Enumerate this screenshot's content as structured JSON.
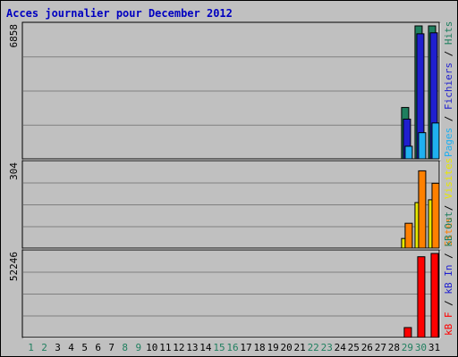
{
  "title": "Acces journalier pour December 2012",
  "colors": {
    "background": "#c0c0c0",
    "title": "#0000c0",
    "hits": "#1f7f5f",
    "files": "#1f1fcf",
    "pages": "#1fb0f0",
    "visits": "#e8e800",
    "sites": "#ff8000",
    "kb_out": "#1f7f5f",
    "kb_in": "#1f1fcf",
    "kb_f": "#ff0000",
    "weekend": "#1f7f5f",
    "weekday": "#000000"
  },
  "chart_data": {
    "type": "bar",
    "title": "Acces journalier pour December 2012",
    "days": [
      "1",
      "2",
      "3",
      "4",
      "5",
      "6",
      "7",
      "8",
      "9",
      "10",
      "11",
      "12",
      "13",
      "14",
      "15",
      "16",
      "17",
      "18",
      "19",
      "20",
      "21",
      "22",
      "23",
      "24",
      "25",
      "26",
      "27",
      "28",
      "29",
      "30",
      "31"
    ],
    "weekend_days": [
      "1",
      "2",
      "8",
      "9",
      "15",
      "16",
      "22",
      "23",
      "29",
      "30"
    ],
    "panels": [
      {
        "name": "hits-files-pages",
        "max_label": "6858",
        "ylim": [
          0,
          6858
        ],
        "legend": [
          {
            "text": "Pages",
            "color": "#1fb0f0"
          },
          {
            "text": " / ",
            "color": "#000000"
          },
          {
            "text": "Fichiers",
            "color": "#1f1fcf"
          },
          {
            "text": " / ",
            "color": "#000000"
          },
          {
            "text": "Hits",
            "color": "#1f7f5f"
          }
        ],
        "series": [
          {
            "key": "hits",
            "color": "#1f7f5f",
            "values": {
              "29": 2650,
              "30": 6858,
              "31": 6858
            }
          },
          {
            "key": "files",
            "color": "#1f1fcf",
            "values": {
              "29": 2050,
              "30": 6450,
              "31": 6500
            }
          },
          {
            "key": "pages",
            "color": "#1fb0f0",
            "values": {
              "29": 650,
              "30": 1350,
              "31": 1850
            }
          }
        ]
      },
      {
        "name": "visits-sites",
        "max_label": "304",
        "ylim": [
          0,
          304
        ],
        "legend": [
          {
            "text": "Sites",
            "color": "#ff8000"
          },
          {
            "text": " / ",
            "color": "#000000"
          },
          {
            "text": "Visites",
            "color": "#e8e800"
          }
        ],
        "series": [
          {
            "key": "visits",
            "color": "#e8e800",
            "values": {
              "29": 35,
              "30": 165,
              "31": 175
            }
          },
          {
            "key": "sites",
            "color": "#ff8000",
            "values": {
              "29": 90,
              "30": 280,
              "31": 235
            }
          }
        ]
      },
      {
        "name": "kbytes",
        "max_label": "52246",
        "ylim": [
          0,
          52246
        ],
        "legend": [
          {
            "text": "kB F",
            "color": "#ff0000"
          },
          {
            "text": " / ",
            "color": "#000000"
          },
          {
            "text": "kB In",
            "color": "#1f1fcf"
          },
          {
            "text": " / ",
            "color": "#000000"
          },
          {
            "text": "kB Out",
            "color": "#1f7f5f"
          }
        ],
        "series": [
          {
            "key": "kb_f",
            "color": "#ff0000",
            "values": {
              "29": 6100,
              "30": 50200,
              "31": 52246
            }
          }
        ]
      }
    ]
  }
}
